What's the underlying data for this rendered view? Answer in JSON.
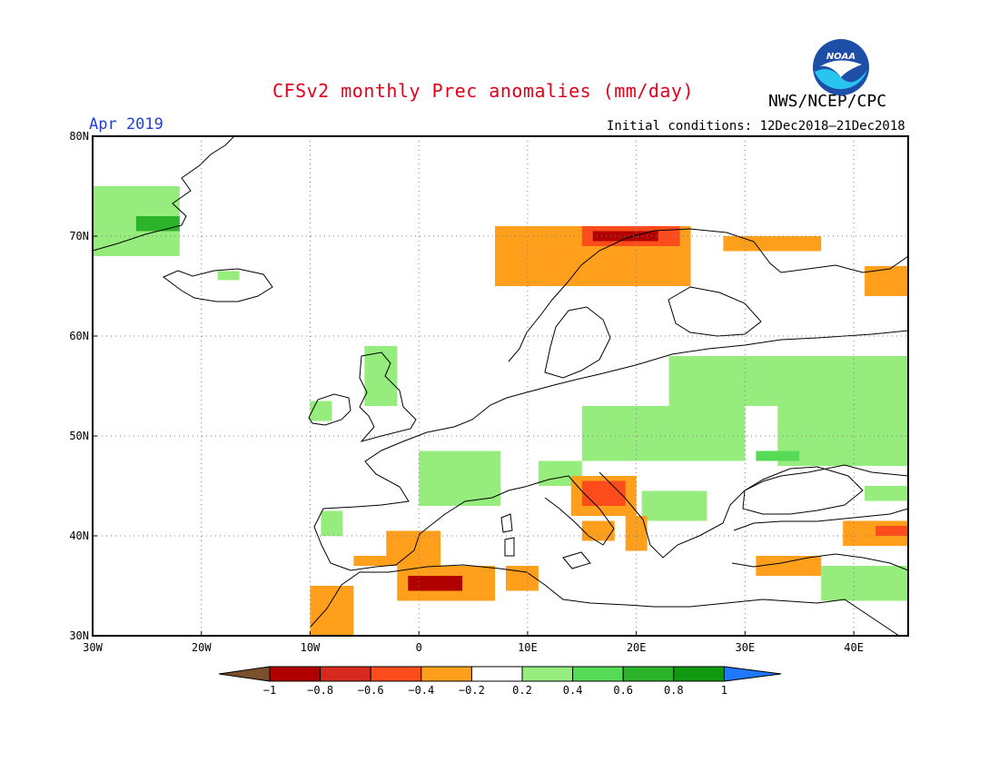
{
  "header": {
    "title": "CFSv2 monthly Prec anomalies (mm/day)",
    "agency": "NWS/NCEP/CPC",
    "period": "Apr 2019",
    "initial_conditions": "Initial conditions: 12Dec2018–21Dec2018",
    "logo_text": "NOAA"
  },
  "map": {
    "projection": "equirectangular",
    "lon_range": [
      -30,
      45
    ],
    "lat_range": [
      30,
      80
    ],
    "gridlines": "dotted",
    "lat_labels": [
      "30N",
      "40N",
      "50N",
      "60N",
      "70N",
      "80N"
    ],
    "lon_labels": [
      "30W",
      "20W",
      "10W",
      "0",
      "10E",
      "20E",
      "30E",
      "40E"
    ],
    "anomaly_regions": [
      {
        "area": "Greenland east coast",
        "lon": [
          -30,
          -22
        ],
        "lat": [
          68,
          75
        ],
        "category": "0.2 to 0.4"
      },
      {
        "area": "Greenland east coast",
        "lon": [
          -26,
          -22
        ],
        "lat": [
          70.5,
          72
        ],
        "category": "0.6 to 0.8"
      },
      {
        "area": "Iceland",
        "lon": [
          -18.5,
          -16.5
        ],
        "lat": [
          65.6,
          66.5
        ],
        "category": "0.2 to 0.4"
      },
      {
        "area": "Ireland",
        "lon": [
          -10,
          -8
        ],
        "lat": [
          51.5,
          53.5
        ],
        "category": "0.2 to 0.4"
      },
      {
        "area": "Scotland / Northern England",
        "lon": [
          -5,
          -2
        ],
        "lat": [
          53,
          59
        ],
        "category": "0.2 to 0.4"
      },
      {
        "area": "France",
        "lon": [
          0,
          7.5
        ],
        "lat": [
          43,
          48.5
        ],
        "category": "0.2 to 0.4"
      },
      {
        "area": "Northwest Iberia",
        "lon": [
          -9,
          -7
        ],
        "lat": [
          40,
          42.5
        ],
        "category": "0.2 to 0.4"
      },
      {
        "area": "Alps / North Italy",
        "lon": [
          11,
          15
        ],
        "lat": [
          45,
          47.5
        ],
        "category": "0.2 to 0.4"
      },
      {
        "area": "Central Europe to Ukraine",
        "lon": [
          15,
          30
        ],
        "lat": [
          47.5,
          53
        ],
        "category": "0.2 to 0.4"
      },
      {
        "area": "Baltic / Western Russia",
        "lon": [
          23,
          35
        ],
        "lat": [
          53,
          58
        ],
        "category": "0.2 to 0.4"
      },
      {
        "area": "Western Russia",
        "lon": [
          33,
          45
        ],
        "lat": [
          47,
          58
        ],
        "category": "0.2 to 0.4"
      },
      {
        "area": "Ukraine",
        "lon": [
          31,
          35
        ],
        "lat": [
          47.5,
          48.5
        ],
        "category": "0.4 to 0.6"
      },
      {
        "area": "Bulgaria / Romania",
        "lon": [
          20.5,
          26.5
        ],
        "lat": [
          41.5,
          44.5
        ],
        "category": "0.2 to 0.4"
      },
      {
        "area": "Turkey south coast / Levant",
        "lon": [
          37,
          45
        ],
        "lat": [
          33.5,
          37
        ],
        "category": "0.2 to 0.4"
      },
      {
        "area": "Caucasus",
        "lon": [
          41,
          45
        ],
        "lat": [
          43.5,
          45
        ],
        "category": "0.2 to 0.4"
      },
      {
        "area": "Northern Norway coast",
        "lon": [
          7,
          25
        ],
        "lat": [
          65,
          71
        ],
        "category": "-0.4 to -0.2"
      },
      {
        "area": "Northern Norway coast",
        "lon": [
          15,
          24
        ],
        "lat": [
          69,
          71
        ],
        "category": "-0.6 to -0.4"
      },
      {
        "area": "Northern Norway coast",
        "lon": [
          16,
          22
        ],
        "lat": [
          69.5,
          70.5
        ],
        "category": "-0.8 to -0.6"
      },
      {
        "area": "Kola / White Sea",
        "lon": [
          28,
          37
        ],
        "lat": [
          68.5,
          70
        ],
        "category": "-0.4 to -0.2"
      },
      {
        "area": "Northwest Russia coast",
        "lon": [
          41,
          45
        ],
        "lat": [
          64,
          67
        ],
        "category": "-0.4 to -0.2"
      },
      {
        "area": "Eastern Spain",
        "lon": [
          -3,
          2
        ],
        "lat": [
          37,
          40.5
        ],
        "category": "-0.4 to -0.2"
      },
      {
        "area": "Southern Spain",
        "lon": [
          -6,
          -1
        ],
        "lat": [
          37,
          38
        ],
        "category": "-0.4 to -0.2"
      },
      {
        "area": "Morocco",
        "lon": [
          -10,
          -6
        ],
        "lat": [
          30,
          35
        ],
        "category": "-0.4 to -0.2"
      },
      {
        "area": "Northern Algeria",
        "lon": [
          -2,
          7
        ],
        "lat": [
          33.5,
          37
        ],
        "category": "-0.4 to -0.2"
      },
      {
        "area": "Northern Algeria",
        "lon": [
          -1,
          4
        ],
        "lat": [
          34.5,
          36
        ],
        "category": "-0.8 to -0.6"
      },
      {
        "area": "Tunisia",
        "lon": [
          8,
          11
        ],
        "lat": [
          34.5,
          37
        ],
        "category": "-0.4 to -0.2"
      },
      {
        "area": "Croatia / Bosnia",
        "lon": [
          14,
          20
        ],
        "lat": [
          42,
          46
        ],
        "category": "-0.4 to -0.2"
      },
      {
        "area": "Croatia / Bosnia",
        "lon": [
          15,
          19
        ],
        "lat": [
          43,
          45.5
        ],
        "category": "-0.6 to -0.4"
      },
      {
        "area": "Southern Italy",
        "lon": [
          15,
          18
        ],
        "lat": [
          39.5,
          41.5
        ],
        "category": "-0.4 to -0.2"
      },
      {
        "area": "Albania / Greece",
        "lon": [
          19,
          21
        ],
        "lat": [
          38.5,
          42
        ],
        "category": "-0.4 to -0.2"
      },
      {
        "area": "Eastern Turkey",
        "lon": [
          39,
          45
        ],
        "lat": [
          39,
          41.5
        ],
        "category": "-0.4 to -0.2"
      },
      {
        "area": "Eastern Turkey",
        "lon": [
          42,
          45
        ],
        "lat": [
          40,
          41
        ],
        "category": "-0.6 to -0.4"
      },
      {
        "area": "Turkey south coast",
        "lon": [
          31,
          37
        ],
        "lat": [
          36,
          38
        ],
        "category": "-0.4 to -0.2"
      }
    ]
  },
  "colorbar": {
    "labels": [
      "−1",
      "−0.8",
      "−0.6",
      "−0.4",
      "−0.2",
      "0.2",
      "0.4",
      "0.6",
      "0.8",
      "1"
    ],
    "colors": [
      "#7a4f2c",
      "#b10000",
      "#d62a1e",
      "#ff4c1c",
      "#ff9f1c",
      "#ffffff",
      "#97ec7e",
      "#55db55",
      "#2bb42b",
      "#119911",
      "#1f78ff"
    ]
  },
  "colors": {
    "title": "#e3001b",
    "period": "#1f3fd6",
    "noaa_blue": "#1d4ea8",
    "noaa_cyan": "#29c5f1"
  }
}
